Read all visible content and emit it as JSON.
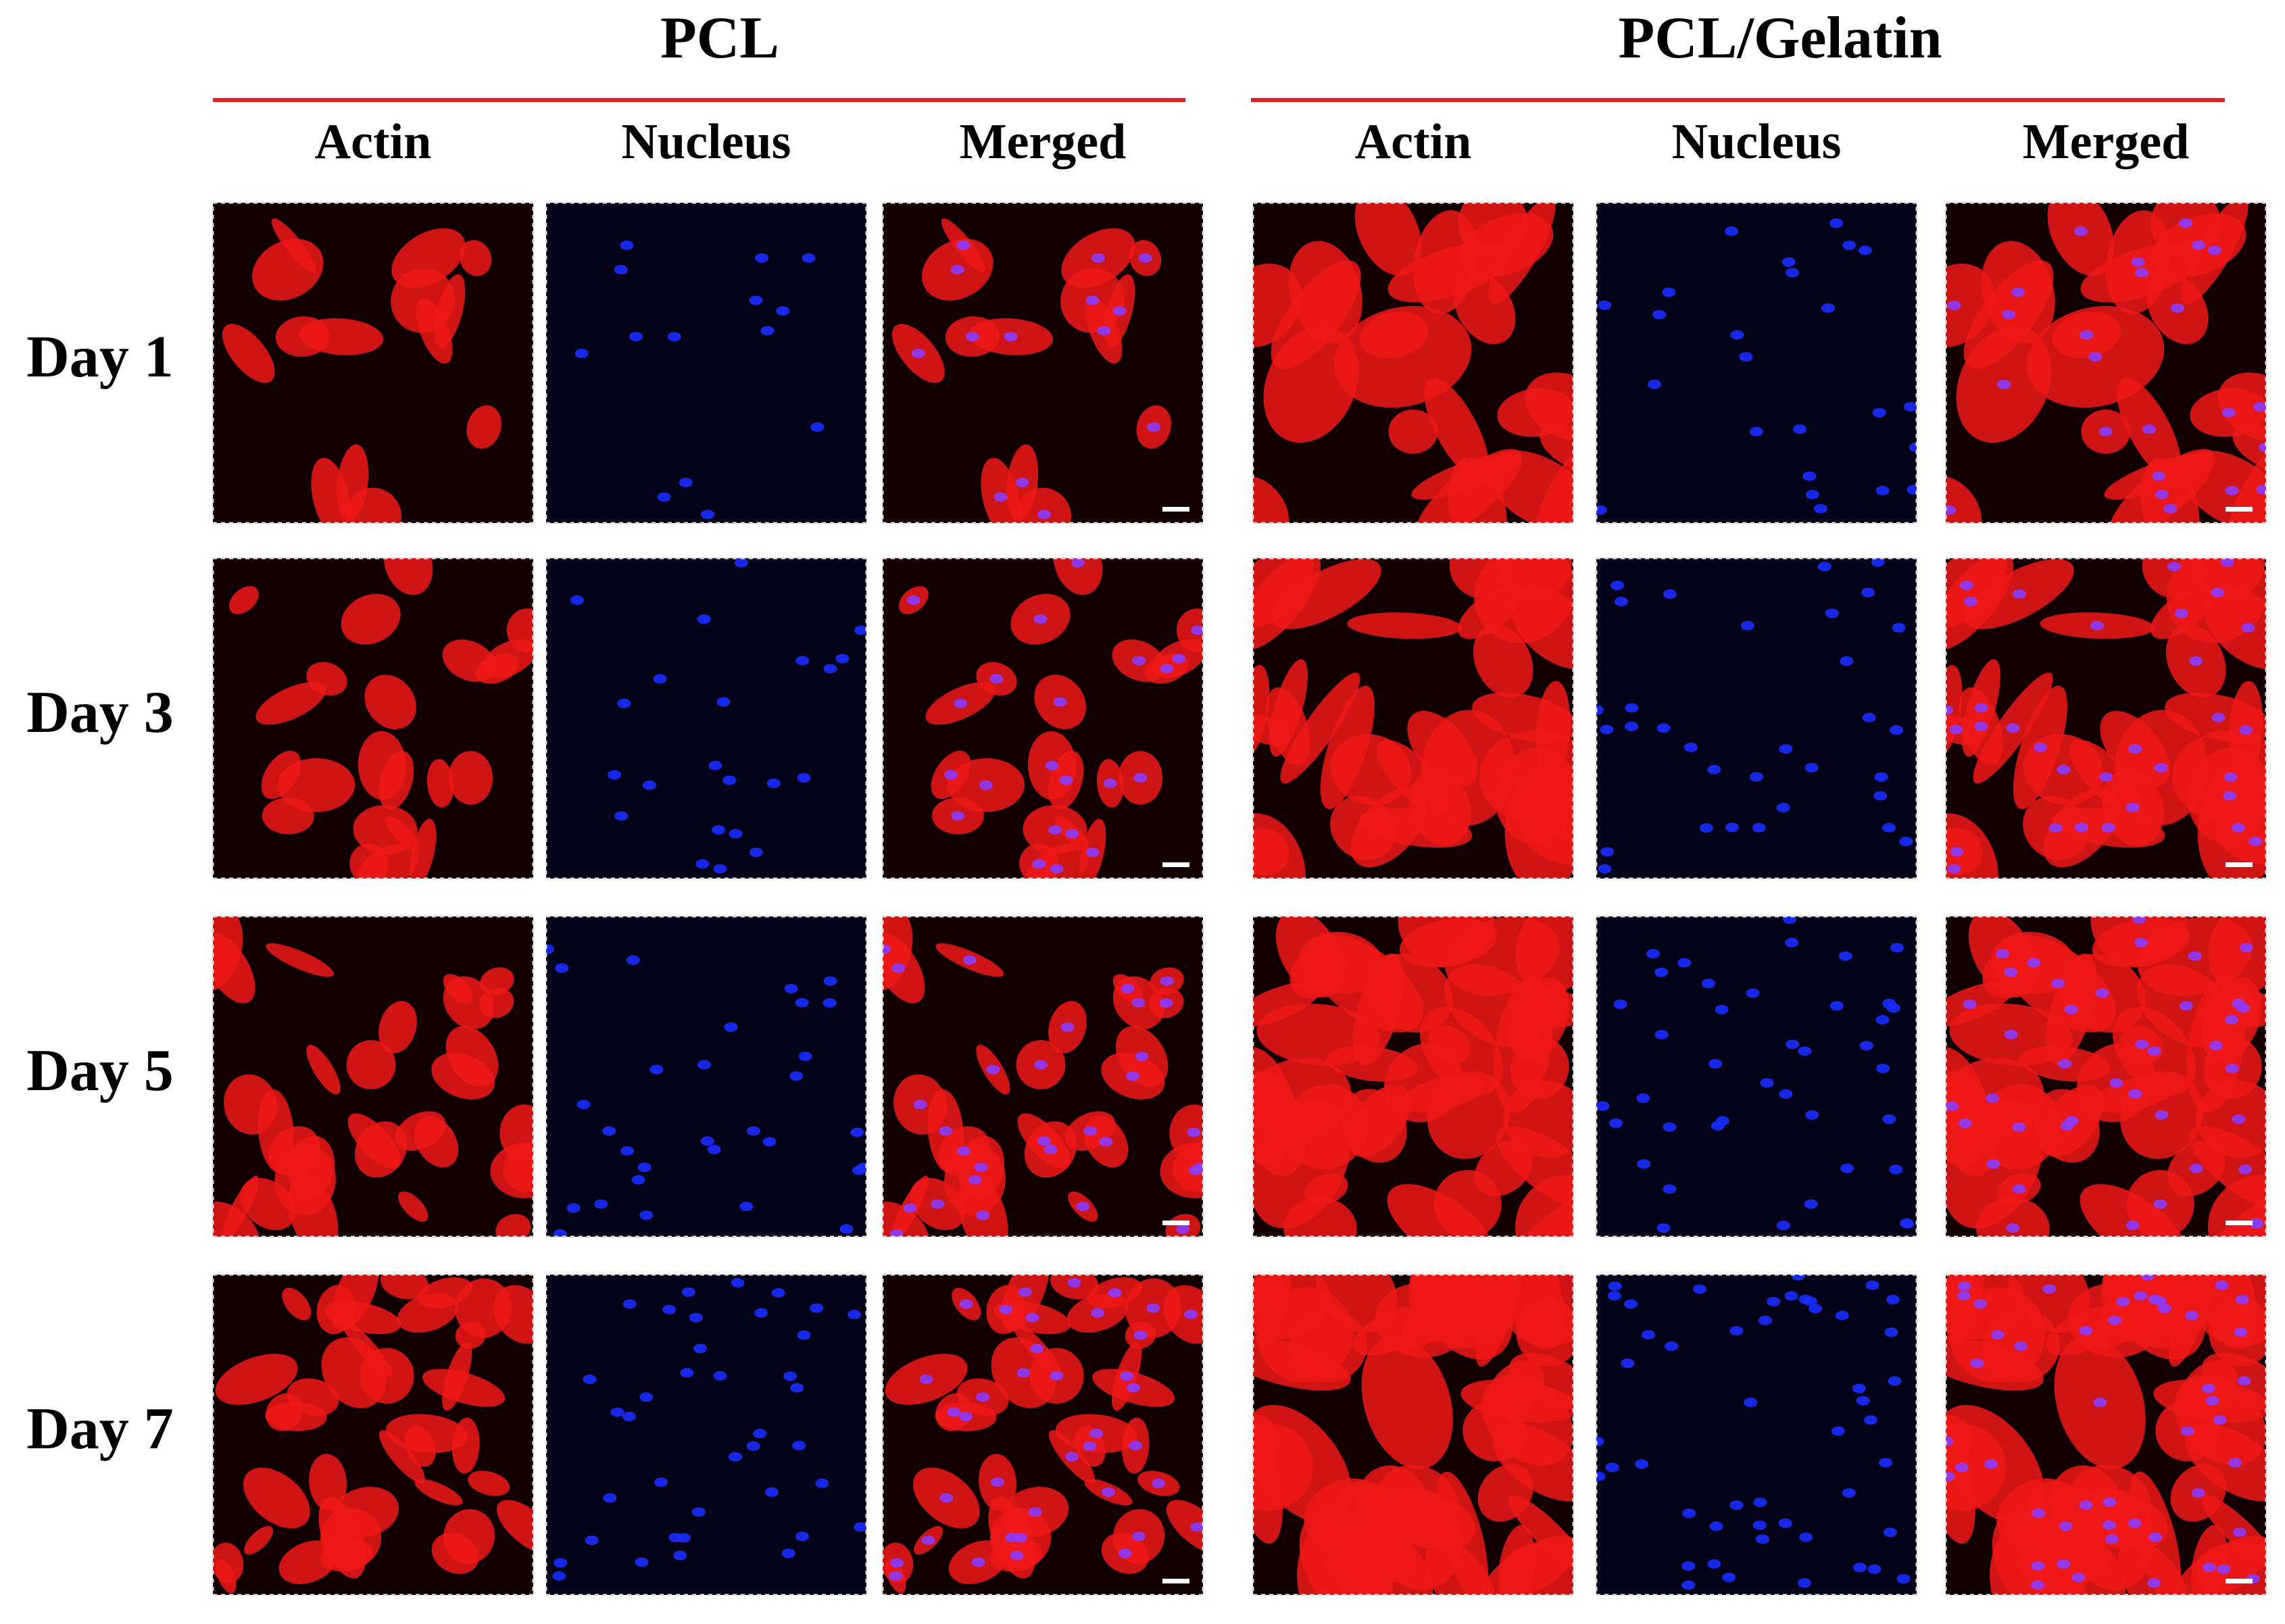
{
  "groups": [
    {
      "title": "PCL",
      "columns": [
        "Actin",
        "Nucleus",
        "Merged"
      ]
    },
    {
      "title": "PCL/Gelatin",
      "columns": [
        "Actin",
        "Nucleus",
        "Merged"
      ]
    }
  ],
  "rows": [
    "Day 1",
    "Day 3",
    "Day 5",
    "Day 7"
  ]
}
